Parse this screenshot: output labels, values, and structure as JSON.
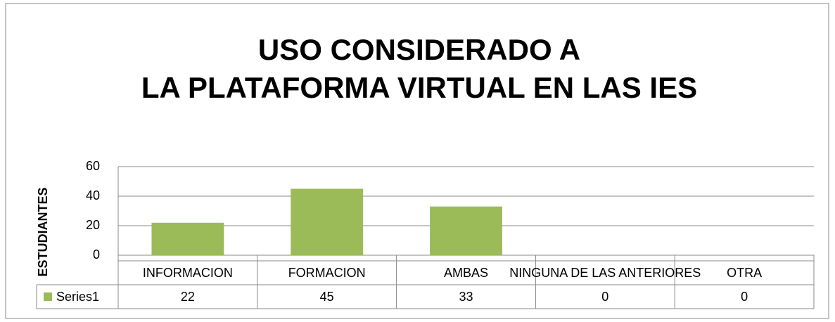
{
  "chart_data": {
    "type": "bar",
    "title": [
      "USO CONSIDERADO  A",
      "LA PLATAFORMA VIRTUAL EN LAS IES"
    ],
    "y_label": "ESTUDIANTES",
    "categories": [
      "INFORMACION",
      "FORMACION",
      "AMBAS",
      "NINGUNA DE LAS ANTERIORES",
      "OTRA"
    ],
    "series": [
      {
        "name": "Series1",
        "color": "#9bbb59",
        "values": [
          22,
          45,
          33,
          0,
          0
        ]
      }
    ],
    "ylim": [
      0,
      60
    ],
    "yticks": [
      0,
      20,
      40,
      60
    ],
    "grid": true,
    "data_table": true
  }
}
